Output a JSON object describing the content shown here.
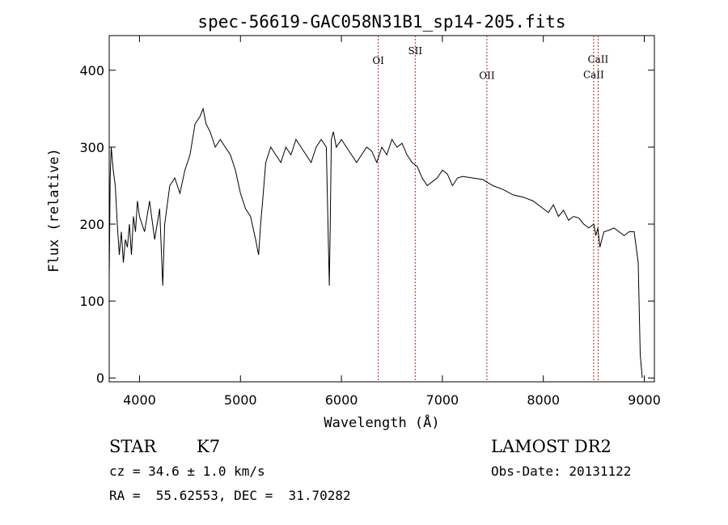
{
  "chart_data": {
    "type": "line",
    "title": "spec-56619-GAC058N31B1_sp14-205.fits",
    "xlabel": "Wavelength (Å)",
    "ylabel": "Flux (relative)",
    "xlim": [
      3700,
      9100
    ],
    "ylim": [
      -5,
      445
    ],
    "xticks": [
      4000,
      5000,
      6000,
      7000,
      8000,
      9000
    ],
    "yticks": [
      0,
      100,
      200,
      300,
      400
    ],
    "grid": false,
    "line_color": "#000000",
    "marker_color": "#b22222",
    "series": [
      {
        "x": [
          3700,
          3710,
          3720,
          3740,
          3760,
          3780,
          3800,
          3820,
          3840,
          3860,
          3880,
          3900,
          3920,
          3940,
          3960,
          3980,
          4000,
          4050,
          4100,
          4150,
          4200,
          4230,
          4250,
          4300,
          4350,
          4400,
          4450,
          4500,
          4550,
          4600,
          4630,
          4660,
          4700,
          4750,
          4800,
          4850,
          4900,
          4950,
          5000,
          5050,
          5100,
          5150,
          5180,
          5200,
          5220,
          5250,
          5300,
          5350,
          5400,
          5450,
          5500,
          5550,
          5600,
          5650,
          5700,
          5750,
          5800,
          5850,
          5880,
          5890,
          5900,
          5920,
          5950,
          6000,
          6050,
          6100,
          6150,
          6200,
          6250,
          6300,
          6350,
          6400,
          6450,
          6500,
          6550,
          6600,
          6650,
          6700,
          6750,
          6800,
          6850,
          6900,
          6950,
          7000,
          7050,
          7100,
          7150,
          7200,
          7300,
          7400,
          7500,
          7600,
          7700,
          7800,
          7900,
          8000,
          8050,
          8100,
          8150,
          8200,
          8250,
          8300,
          8350,
          8400,
          8450,
          8500,
          8520,
          8540,
          8560,
          8600,
          8650,
          8700,
          8750,
          8800,
          8850,
          8900,
          8940,
          8960,
          8980
        ],
        "y": [
          130,
          260,
          300,
          270,
          250,
          200,
          160,
          190,
          150,
          180,
          170,
          200,
          160,
          210,
          190,
          230,
          210,
          190,
          230,
          180,
          220,
          120,
          200,
          250,
          260,
          240,
          270,
          290,
          330,
          340,
          350,
          330,
          320,
          300,
          310,
          300,
          290,
          270,
          240,
          220,
          210,
          180,
          160,
          200,
          230,
          280,
          300,
          290,
          280,
          300,
          290,
          310,
          300,
          290,
          280,
          300,
          310,
          300,
          120,
          200,
          310,
          320,
          300,
          310,
          300,
          290,
          280,
          290,
          300,
          295,
          280,
          300,
          290,
          310,
          300,
          305,
          290,
          280,
          275,
          260,
          250,
          255,
          260,
          270,
          265,
          250,
          260,
          262,
          260,
          258,
          250,
          245,
          238,
          235,
          230,
          220,
          215,
          225,
          210,
          218,
          205,
          210,
          208,
          200,
          195,
          200,
          185,
          195,
          170,
          190,
          192,
          195,
          190,
          185,
          190,
          190,
          150,
          30,
          0
        ]
      }
    ],
    "annotations": [
      {
        "label": "OI",
        "x": 6365,
        "y": 408
      },
      {
        "label": "SII",
        "x": 6731,
        "y": 421
      },
      {
        "label": "OII",
        "x": 7441,
        "y": 389
      },
      {
        "label": "CaII",
        "x": 8542,
        "y": 410
      },
      {
        "label": "CaII",
        "x": 8498,
        "y": 390
      }
    ]
  },
  "info": {
    "class": "STAR",
    "subclass": "K7",
    "redshift": "cz = 34.6 ± 1.0 km/s",
    "coords": "RA =  55.62553, DEC =  31.70282",
    "survey": "LAMOST DR2",
    "obs_date": "Obs-Date: 20131122"
  }
}
